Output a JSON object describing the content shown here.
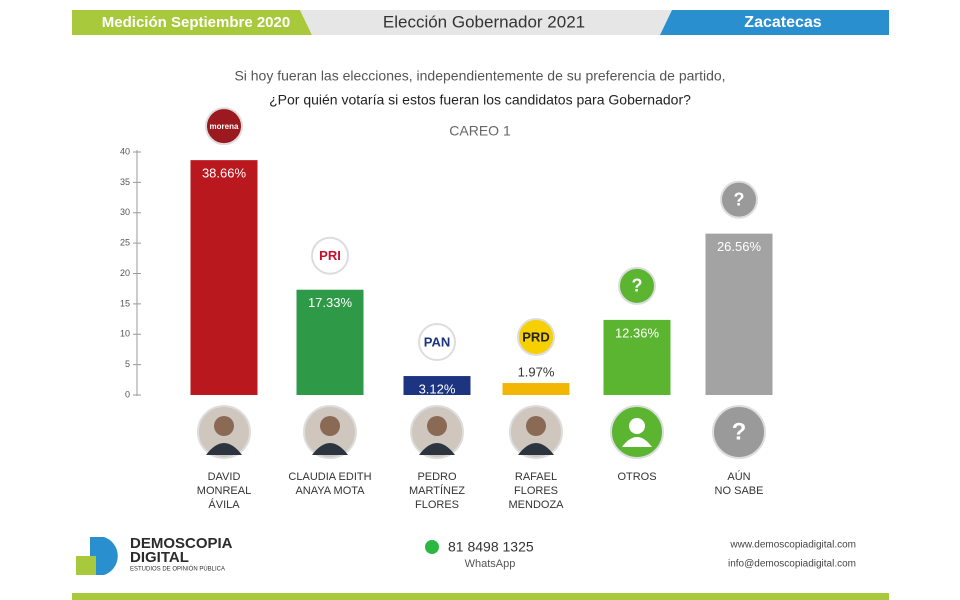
{
  "header": {
    "left": "Medición Septiembre 2020",
    "center": "Elección Gobernador 2021",
    "right": "Zacatecas"
  },
  "chart_data": {
    "type": "bar",
    "subtitle": "Si hoy fueran las elecciones, independientemente de su preferencia de partido,",
    "title": "¿Por quién votaría si estos fueran los candidatos para Gobernador?",
    "label": "CAREO 1",
    "categories": [
      "DAVID\nMONREAL\nÁVILA",
      "CLAUDIA EDITH\nANAYA MOTA",
      "PEDRO\nMARTÍNEZ\nFLORES",
      "RAFAEL\nFLORES\nMENDOZA",
      "OTROS",
      "AÚN\nNO SABE"
    ],
    "values": [
      38.66,
      17.33,
      3.12,
      1.97,
      12.36,
      26.56
    ],
    "value_labels": [
      "38.66%",
      "17.33%",
      "3.12%",
      "1.97%",
      "12.36%",
      "26.56%"
    ],
    "colors": [
      "#b8181e",
      "#2e9a48",
      "#1d3580",
      "#f2b705",
      "#5cb531",
      "#a3a3a3"
    ],
    "logos": [
      "morena",
      "PRI",
      "PAN",
      "PRD",
      "?",
      "?"
    ],
    "ylim": [
      0,
      40
    ],
    "yticks": [
      0,
      5,
      10,
      15,
      20,
      25,
      30,
      35,
      40
    ]
  },
  "footer": {
    "brand": "DEMOSCOPIA",
    "brand2": "DIGITAL",
    "tagline": "ESTUDIOS DE OPINIÓN PÚBLICA",
    "phone": "81 8498 1325",
    "phone_label": "WhatsApp",
    "web": "www.demoscopiadigital.com",
    "email": "info@demoscopiadigital.com"
  }
}
